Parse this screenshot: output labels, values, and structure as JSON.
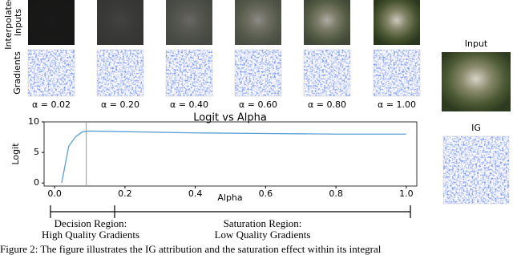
{
  "figure": {
    "row_labels": [
      "Interpolated\nInputs",
      "Gradients"
    ],
    "alpha_labels": [
      "α = 0.02",
      "α = 0.20",
      "α = 0.40",
      "α = 0.60",
      "α = 0.80",
      "α = 1.00"
    ],
    "side_labels": [
      "Input",
      "IG"
    ],
    "regions": [
      {
        "title": "Decision Region:",
        "subtitle": "High Quality Gradients"
      },
      {
        "title": "Saturation Region:",
        "subtitle": "Low Quality Gradients"
      }
    ],
    "caption": "Figure 2: The figure illustrates the IG attribution and the saturation effect within its integral"
  },
  "chart_data": {
    "type": "line",
    "title": "Logit vs Alpha",
    "x_label": "Alpha",
    "y_label": "Logit",
    "x": [
      0.02,
      0.04,
      0.06,
      0.08,
      0.1,
      0.2,
      0.4,
      0.6,
      0.8,
      1.0
    ],
    "series": [
      {
        "name": "Logit",
        "color": "#5a9fd4",
        "values": [
          0,
          6,
          7.6,
          8.4,
          8.5,
          8.4,
          8.2,
          8.1,
          8.0,
          8.0
        ]
      }
    ],
    "vline": 0.09,
    "xlim": [
      -0.03,
      1.03
    ],
    "ylim": [
      -0.5,
      10
    ],
    "xticks": [
      {
        "value": 0,
        "label": "0.0"
      },
      0.2,
      0.4,
      0.6,
      0.8,
      {
        "value": 1,
        "label": "1.0"
      }
    ],
    "yticks": [
      0,
      5,
      10
    ]
  }
}
